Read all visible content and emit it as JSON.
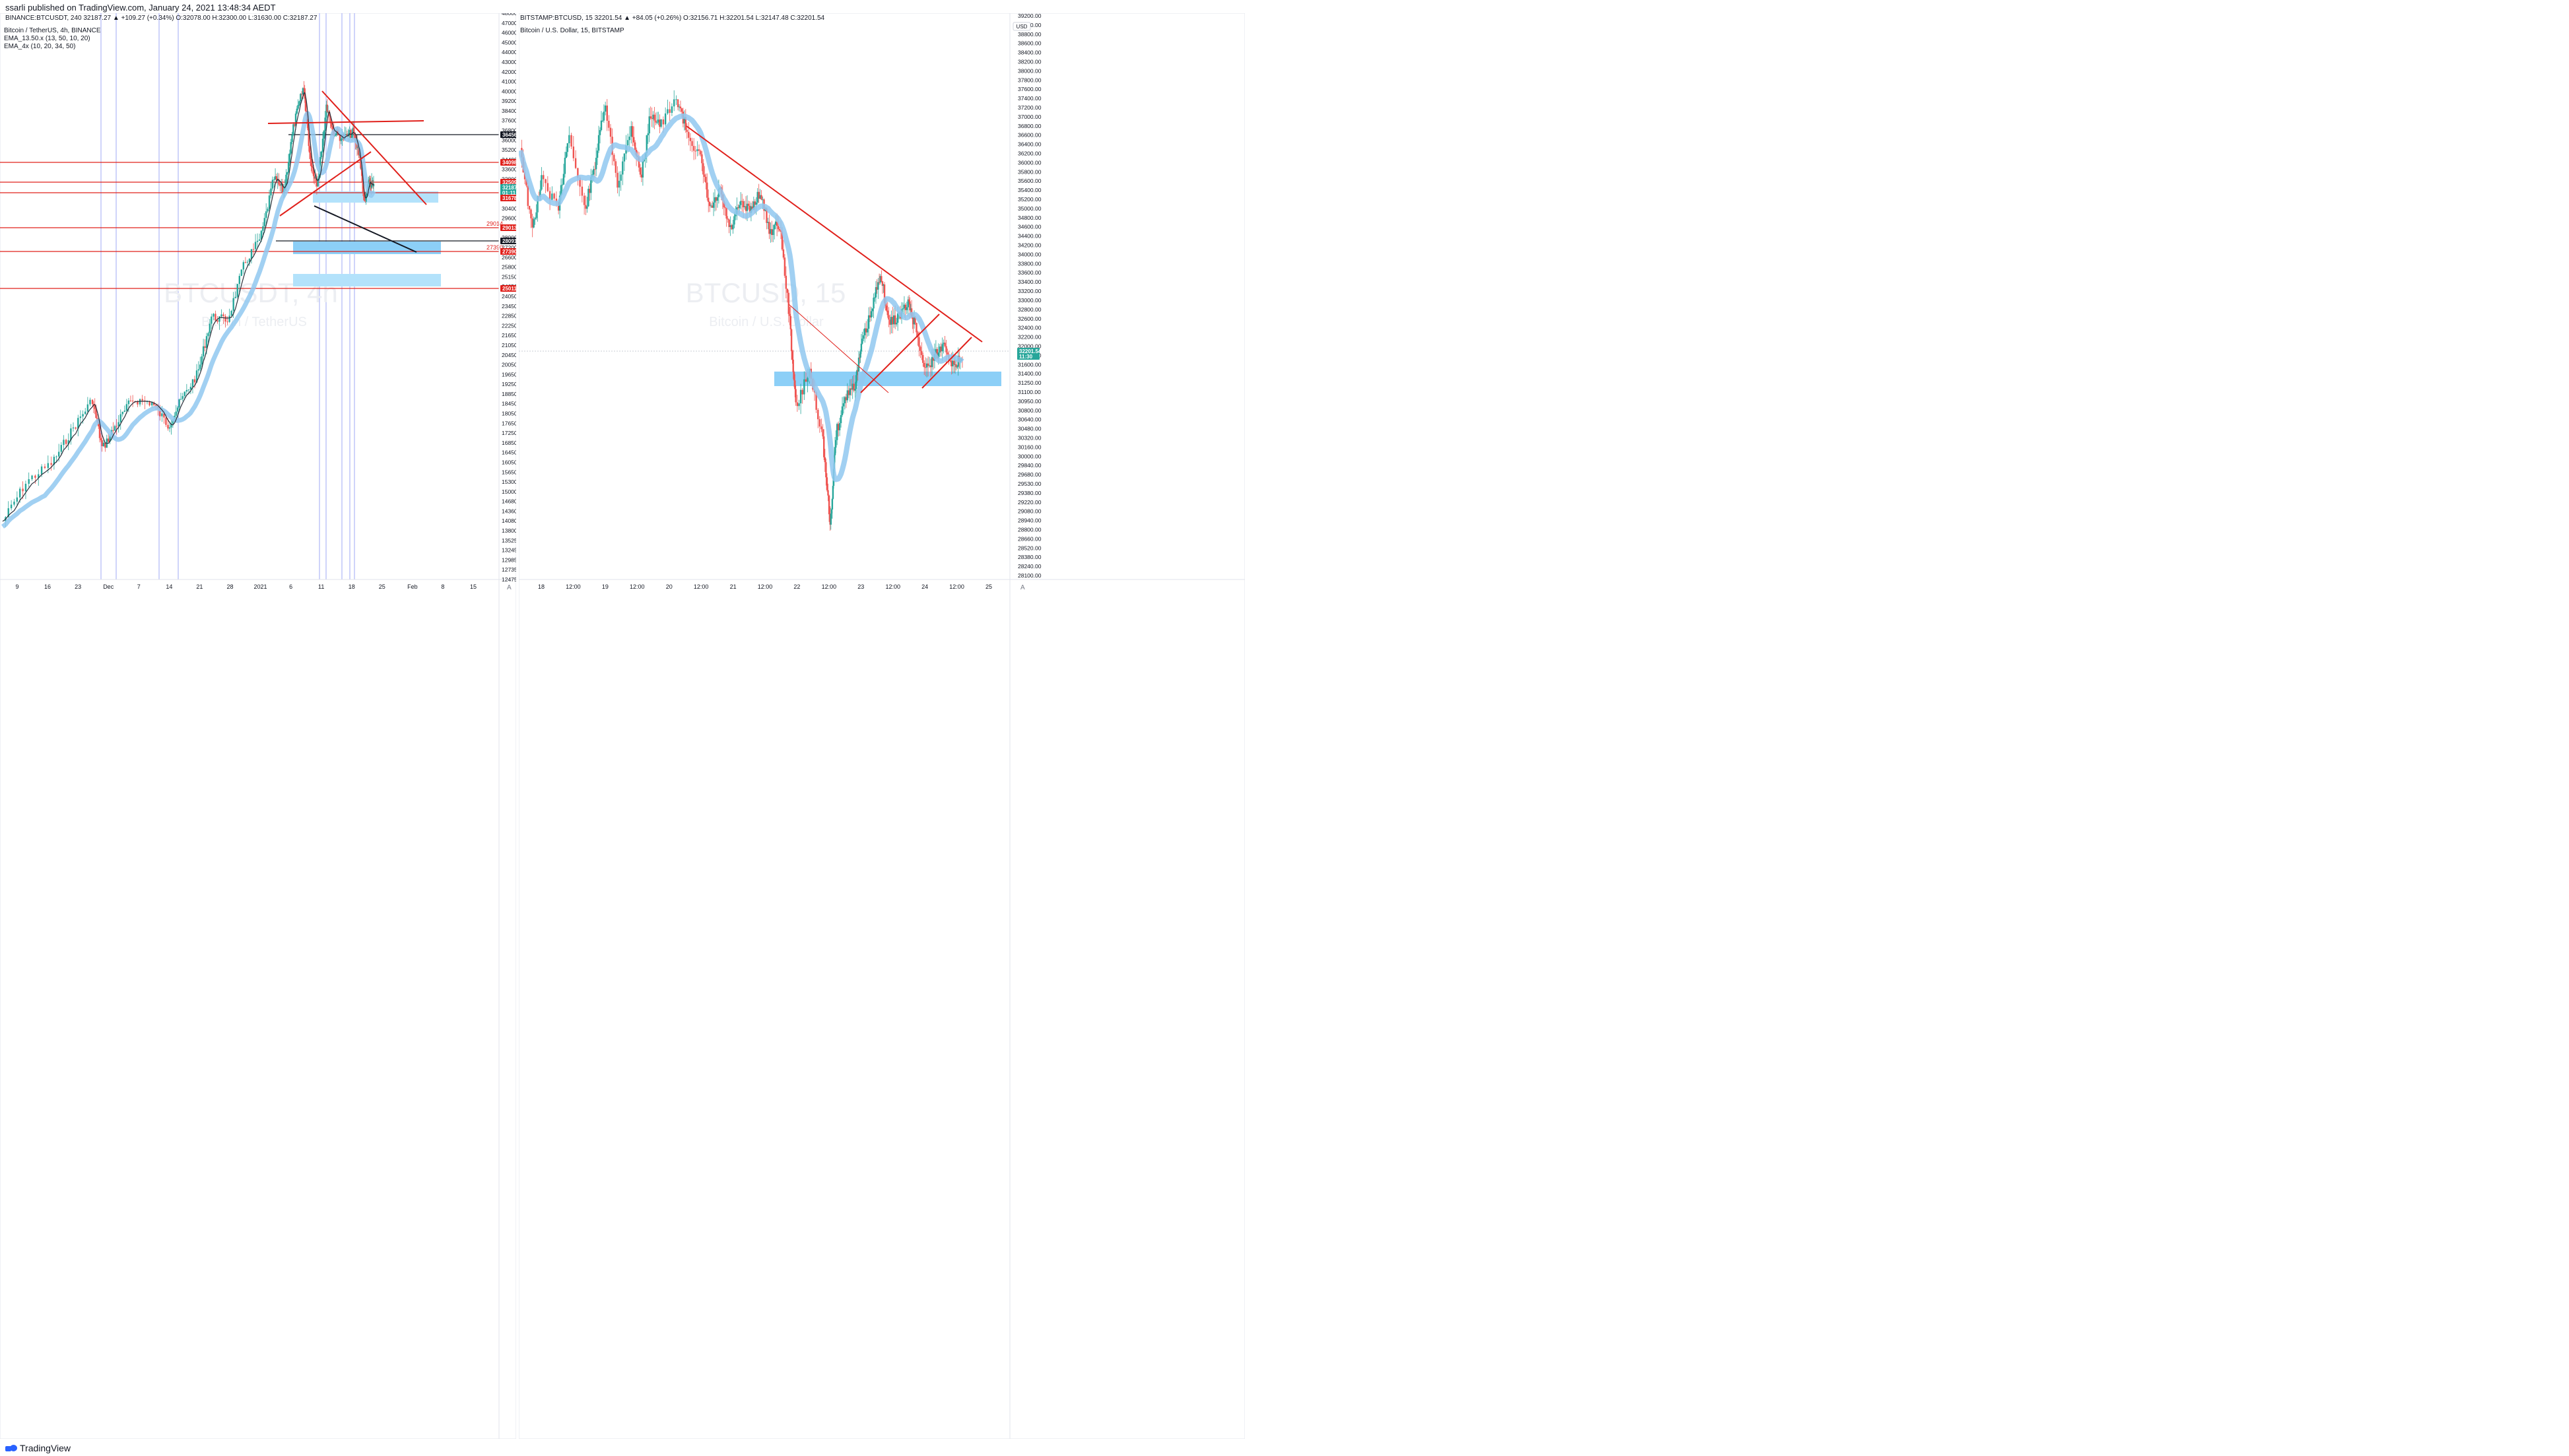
{
  "publisher_line": "ssarli published on TradingView.com, January 24, 2021 13:48:34 AEDT",
  "footer": {
    "brand": "TradingView"
  },
  "left_chart": {
    "header": "BINANCE:BTCUSDT, 240  32187.27 ▲ +109.27 (+0.34%)  O:32078.00  H:32300.00  L:31630.00  C:32187.27",
    "title": "Bitcoin / TetherUS, 4h, BINANCE",
    "indicators": [
      "EMA_13.50.x (13, 50, 10, 20)",
      "EMA_4x (10, 20, 34, 50)"
    ],
    "watermark_symbol": "BTCUSDT, 4h",
    "watermark_name": "Bitcoin / TetherUS",
    "x_ticks": [
      "9",
      "16",
      "23",
      "Dec",
      "7",
      "14",
      "21",
      "28",
      "2021",
      "6",
      "11",
      "18",
      "25",
      "Feb",
      "8",
      "15"
    ],
    "y_ticks": [
      "48000.00",
      "47000.00",
      "46000.00",
      "45000.00",
      "44000.00",
      "43000.00",
      "42000.00",
      "41000.00",
      "40000.00",
      "39200.00",
      "38400.00",
      "37600.00",
      "36800.00",
      "36000.00",
      "35200.00",
      "34400.00",
      "33600.00",
      "32800.00",
      "32000.00",
      "31200.00",
      "30400.00",
      "29600.00",
      "28800.00",
      "28000.00",
      "27200.00",
      "26600.00",
      "25800.00",
      "25150.00",
      "24650.00",
      "24050.00",
      "23450.00",
      "22850.00",
      "22250.00",
      "21650.00",
      "21050.00",
      "20450.00",
      "20050.00",
      "19650.00",
      "19250.00",
      "18850.00",
      "18450.00",
      "18050.00",
      "17650.00",
      "17250.00",
      "16850.00",
      "16450.00",
      "16050.00",
      "15650.00",
      "15300.00",
      "15000.00",
      "14680.00",
      "14360.00",
      "14080.00",
      "13800.00",
      "13525.00",
      "13245.00",
      "12985.00",
      "12735.00",
      "12475.00"
    ],
    "price_labels": [
      {
        "text": "36456.02",
        "bg": "#131722"
      },
      {
        "text": "34098.77",
        "bg": "#e0201b"
      },
      {
        "text": "32509.50",
        "bg": "#e0201b"
      },
      {
        "text": "32187.27",
        "bg": "#26a69a"
      },
      {
        "text": "01:11:30",
        "bg": "#26a69a"
      },
      {
        "text": "31678.01",
        "bg": "#e0201b"
      },
      {
        "text": "29013.91",
        "bg": "#e0201b"
      },
      {
        "text": "28091.23",
        "bg": "#131722"
      },
      {
        "text": "27390.91",
        "bg": "#e0201b"
      },
      {
        "text": "25011.25",
        "bg": "#e0201b"
      }
    ],
    "line_annotations": [
      "29014",
      "27390"
    ],
    "axis_symbol": "A"
  },
  "right_chart": {
    "header": "BITSTAMP:BTCUSD, 15  32201.54 ▲ +84.05 (+0.26%)  O:32156.71  H:32201.54  L:32147.48  C:32201.54",
    "title": "Bitcoin / U.S. Dollar, 15, BITSTAMP",
    "currency": "USD",
    "watermark_symbol": "BTCUSD, 15",
    "watermark_name": "Bitcoin / U.S. Dollar",
    "x_ticks": [
      "18",
      "12:00",
      "19",
      "12:00",
      "20",
      "12:00",
      "21",
      "12:00",
      "22",
      "12:00",
      "23",
      "12:00",
      "24",
      "12:00",
      "25"
    ],
    "y_ticks": [
      "39200.00",
      "39000.00",
      "38800.00",
      "38600.00",
      "38400.00",
      "38200.00",
      "38000.00",
      "37800.00",
      "37600.00",
      "37400.00",
      "37200.00",
      "37000.00",
      "36800.00",
      "36600.00",
      "36400.00",
      "36200.00",
      "36000.00",
      "35800.00",
      "35600.00",
      "35400.00",
      "35200.00",
      "35000.00",
      "34800.00",
      "34600.00",
      "34400.00",
      "34200.00",
      "34000.00",
      "33800.00",
      "33600.00",
      "33400.00",
      "33200.00",
      "33000.00",
      "32800.00",
      "32600.00",
      "32400.00",
      "32200.00",
      "32000.00",
      "31800.00",
      "31600.00",
      "31400.00",
      "31250.00",
      "31100.00",
      "30950.00",
      "30800.00",
      "30640.00",
      "30480.00",
      "30320.00",
      "30160.00",
      "30000.00",
      "29840.00",
      "29680.00",
      "29530.00",
      "29380.00",
      "29220.00",
      "29080.00",
      "28940.00",
      "28800.00",
      "28660.00",
      "28520.00",
      "28380.00",
      "28240.00",
      "28100.00"
    ],
    "price_labels": [
      {
        "text": "32201.54",
        "bg": "#26a69a"
      },
      {
        "text": "11:30",
        "bg": "#26a69a"
      }
    ],
    "axis_symbol": "A"
  },
  "chart_data": [
    {
      "type": "candlestick",
      "title": "Bitcoin / TetherUS, 4h, BINANCE",
      "series": [
        {
          "name": "BTCUSDT",
          "x": [
            "9",
            "16",
            "23",
            "Dec",
            "7",
            "14",
            "21",
            "28",
            "2021",
            "6",
            "11",
            "18",
            "25"
          ],
          "values": [
            15300,
            16200,
            18600,
            19200,
            19000,
            19300,
            23500,
            26800,
            29300,
            34000,
            38000,
            35200,
            32187
          ]
        },
        {
          "name": "EMA_13.50.x (13, 50, 10, 20)",
          "values": [
            14800,
            15700,
            18000,
            18900,
            18800,
            19100,
            22500,
            25600,
            28400,
            32500,
            36500,
            35600,
            33500
          ]
        },
        {
          "name": "EMA_4x (10, 20, 34, 50)",
          "values": [
            14400,
            15300,
            17600,
            18600,
            18600,
            18900,
            21800,
            24800,
            27700,
            31500,
            35800,
            35900,
            34500
          ]
        }
      ],
      "colors": {
        "up": "#26a69a",
        "down": "#ef5350",
        "ema_band": "#90c8f0",
        "ema_fill": "#f8d9b0",
        "lines": "#e0201b"
      }
    },
    {
      "type": "candlestick",
      "title": "Bitcoin / U.S. Dollar, 15, BITSTAMP",
      "series": [
        {
          "name": "BTCUSD",
          "x": [
            "18",
            "12:00",
            "19",
            "12:00",
            "20",
            "12:00",
            "21",
            "12:00",
            "22",
            "12:00",
            "23",
            "12:00",
            "24",
            "12:00"
          ],
          "values": [
            36400,
            35600,
            36800,
            36200,
            37600,
            36800,
            34800,
            34400,
            32600,
            29100,
            31500,
            33800,
            32800,
            32201
          ]
        }
      ],
      "colors": {
        "up": "#26a69a",
        "down": "#ef5350",
        "ema_band": "#90c8f0",
        "ema_fill": "#f8d9b0",
        "lines": "#e0201b"
      }
    }
  ]
}
